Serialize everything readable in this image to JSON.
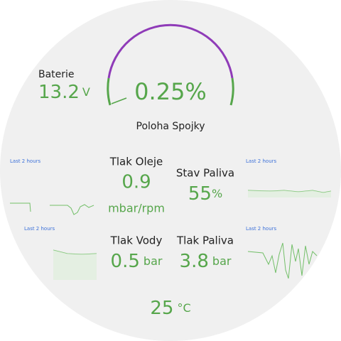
{
  "battery": {
    "label": "Baterie",
    "value": 13.2,
    "unit": "V"
  },
  "clutch": {
    "value": 0.25,
    "unit": "%",
    "label": "Poloha Spojky"
  },
  "panels": [
    {
      "label": "Tlak Oleje",
      "value": 0.9,
      "unit": "mbar/rpm"
    },
    {
      "label": "Stav Paliva",
      "value": 55,
      "unit": "%"
    },
    {
      "label": "Tlak Vody",
      "value": 0.5,
      "unit": "bar"
    },
    {
      "label": "Tlak Paliva",
      "value": 3.8,
      "unit": "bar"
    }
  ],
  "sparkline_labels": [
    "Last 2 hours",
    "Last 2 hours",
    "Last 2 hours",
    "Last 2 hours"
  ],
  "temperature": {
    "value": 25,
    "unit": "°C"
  }
}
